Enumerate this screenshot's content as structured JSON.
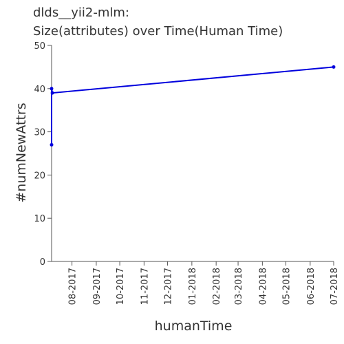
{
  "chart_data": {
    "type": "line",
    "title_lines": [
      "dlds__yii2-mlm:",
      "Size(attributes) over Time(Human Time)"
    ],
    "xlabel": "humanTime",
    "ylabel": "#numNewAttrs",
    "x_ticks": [
      "08-2017",
      "09-2017",
      "10-2017",
      "11-2017",
      "12-2017",
      "01-2018",
      "02-2018",
      "03-2018",
      "04-2018",
      "05-2018",
      "06-2018",
      "07-2018"
    ],
    "y_ticks": [
      0,
      10,
      20,
      30,
      40,
      50
    ],
    "ylim": [
      0,
      50
    ],
    "xlim": [
      "2017-07-06",
      "2018-07-01"
    ],
    "grid": false,
    "series": [
      {
        "color": "#0000dd",
        "points": [
          {
            "x": "2017-07-06",
            "y": 27
          },
          {
            "x": "2017-07-06",
            "y": 40
          },
          {
            "x": "2017-07-07",
            "y": 39
          },
          {
            "x": "2018-07-01",
            "y": 45
          }
        ]
      }
    ]
  }
}
